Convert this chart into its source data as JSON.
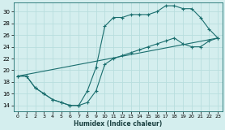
{
  "xlabel": "Humidex (Indice chaleur)",
  "bg_color": "#d4eeee",
  "line_color": "#1a6e6e",
  "grid_color": "#b8dede",
  "xlim": [
    -0.5,
    23.5
  ],
  "ylim": [
    13,
    31.5
  ],
  "xticks": [
    0,
    1,
    2,
    3,
    4,
    5,
    6,
    7,
    8,
    9,
    10,
    11,
    12,
    13,
    14,
    15,
    16,
    17,
    18,
    19,
    20,
    21,
    22,
    23
  ],
  "yticks": [
    14,
    16,
    18,
    20,
    22,
    24,
    26,
    28,
    30
  ],
  "curve_upper": {
    "x": [
      0,
      1,
      2,
      3,
      4,
      5,
      6,
      7,
      8,
      9,
      10,
      11,
      12,
      13,
      14,
      15,
      16,
      17,
      18,
      19,
      20,
      21,
      22,
      23
    ],
    "y": [
      19.0,
      19.0,
      17.0,
      16.0,
      15.0,
      14.5,
      14.0,
      14.0,
      16.5,
      20.5,
      27.5,
      29.0,
      29.0,
      29.5,
      29.5,
      29.5,
      30.0,
      31.0,
      31.0,
      30.5,
      30.5,
      29.0,
      27.0,
      25.5
    ]
  },
  "curve_lower": {
    "x": [
      0,
      1,
      2,
      3,
      4,
      5,
      6,
      7,
      8,
      9,
      10,
      11,
      12,
      13,
      14,
      15,
      16,
      17,
      18,
      19,
      20,
      21,
      22,
      23
    ],
    "y": [
      19.0,
      19.0,
      17.0,
      16.0,
      15.0,
      14.5,
      14.0,
      14.0,
      14.5,
      16.5,
      21.0,
      22.0,
      22.5,
      23.0,
      23.5,
      24.0,
      24.5,
      25.0,
      25.5,
      24.5,
      24.0,
      24.0,
      25.0,
      25.5
    ]
  },
  "line_diag": {
    "x": [
      0,
      23
    ],
    "y": [
      19.0,
      25.5
    ]
  }
}
